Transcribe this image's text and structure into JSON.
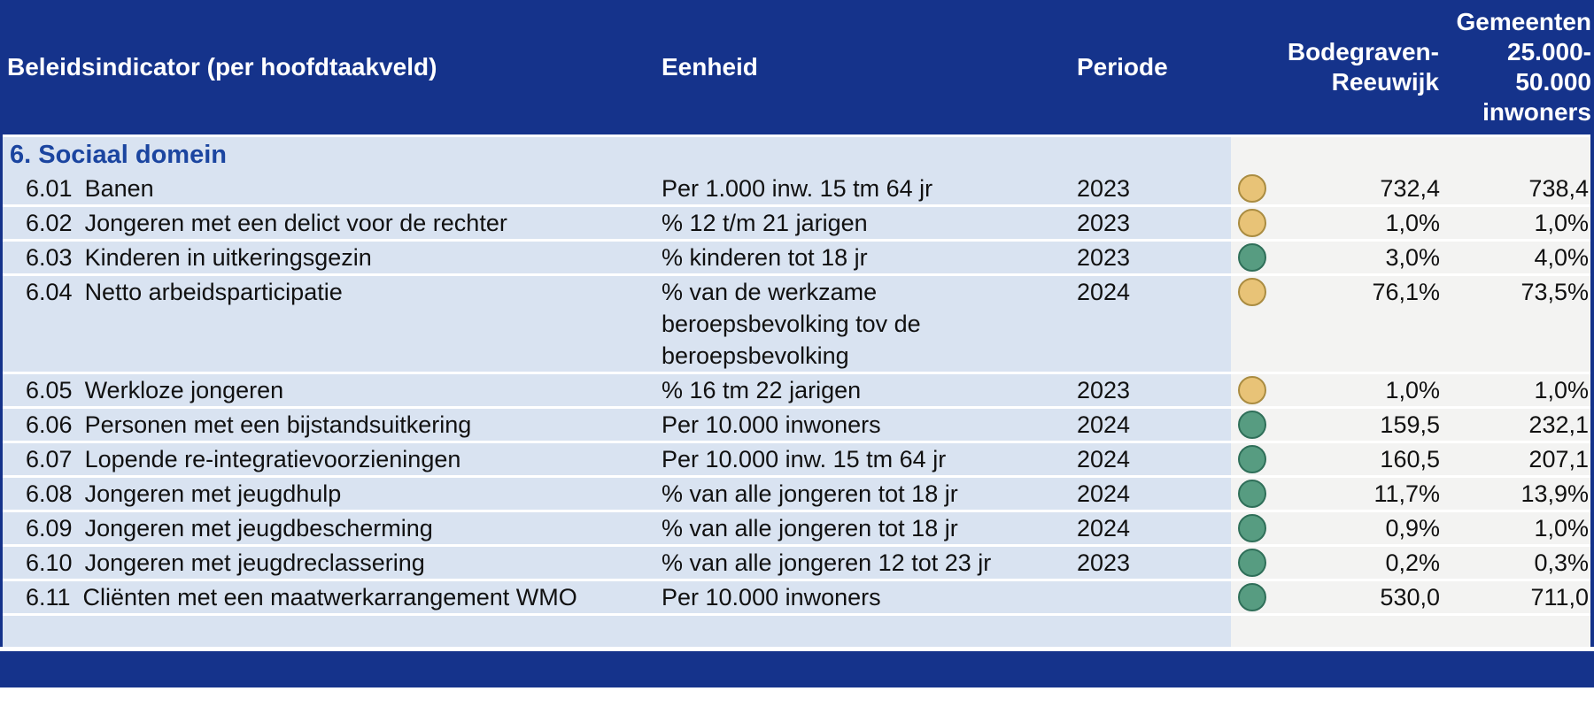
{
  "table": {
    "header": {
      "columns": [
        "Beleidsindicator (per hoofdtaakveld)",
        "Eenheid",
        "Periode",
        "",
        "Bodegraven-\nReeuwijk",
        "Gemeenten\n25.000-\n50.000\ninwoners"
      ]
    },
    "section": {
      "title": "6. Sociaal domein"
    },
    "rows": [
      {
        "num": "6.01",
        "name": "Banen",
        "unit": "Per 1.000 inw. 15 tm 64 jr",
        "period": "2023",
        "status": "yellow",
        "local": "732,4",
        "bench": "738,4"
      },
      {
        "num": "6.02",
        "name": "Jongeren met een delict voor de rechter",
        "unit": "% 12 t/m 21 jarigen",
        "period": "2023",
        "status": "yellow",
        "local": "1,0%",
        "bench": "1,0%"
      },
      {
        "num": "6.03",
        "name": "Kinderen in uitkeringsgezin",
        "unit": "% kinderen tot 18 jr",
        "period": "2023",
        "status": "green",
        "local": "3,0%",
        "bench": "4,0%"
      },
      {
        "num": "6.04",
        "name": "Netto arbeidsparticipatie",
        "unit": "% van de werkzame\nberoepsbevolking tov de\nberoepsbevolking",
        "period": "2024",
        "status": "yellow",
        "local": "76,1%",
        "bench": "73,5%"
      },
      {
        "num": "6.05",
        "name": "Werkloze jongeren",
        "unit": "% 16 tm 22 jarigen",
        "period": "2023",
        "status": "yellow",
        "local": "1,0%",
        "bench": "1,0%"
      },
      {
        "num": "6.06",
        "name": "Personen met een bijstandsuitkering",
        "unit": "Per 10.000 inwoners",
        "period": "2024",
        "status": "green",
        "local": "159,5",
        "bench": "232,1"
      },
      {
        "num": "6.07",
        "name": "Lopende re-integratievoorzieningen",
        "unit": "Per 10.000 inw. 15 tm 64 jr",
        "period": "2024",
        "status": "green",
        "local": "160,5",
        "bench": "207,1"
      },
      {
        "num": "6.08",
        "name": "Jongeren met jeugdhulp",
        "unit": "% van alle jongeren tot 18 jr",
        "period": "2024",
        "status": "green",
        "local": "11,7%",
        "bench": "13,9%"
      },
      {
        "num": "6.09",
        "name": "Jongeren met jeugdbescherming",
        "unit": "% van alle jongeren tot 18 jr",
        "period": "2024",
        "status": "green",
        "local": "0,9%",
        "bench": "1,0%"
      },
      {
        "num": "6.10",
        "name": "Jongeren met jeugdreclassering",
        "unit": "% van alle jongeren 12 tot 23 jr",
        "period": "2023",
        "status": "green",
        "local": "0,2%",
        "bench": "0,3%"
      },
      {
        "num": "6.11",
        "name": "Cliënten met een maatwerkarrangement WMO",
        "unit": "Per 10.000 inwoners",
        "period": "",
        "status": "green",
        "local": "530,0",
        "bench": "711,0"
      }
    ]
  },
  "colors": {
    "header_bg": "#15338b",
    "section_text": "#1b45a0",
    "row_bg": "#d9e3f1",
    "value_bg": "#f3f3f2",
    "status_yellow": {
      "fill": "#e8c377",
      "border": "#aa8c41"
    },
    "status_green": {
      "fill": "#579c81",
      "border": "#2f6f59"
    }
  }
}
